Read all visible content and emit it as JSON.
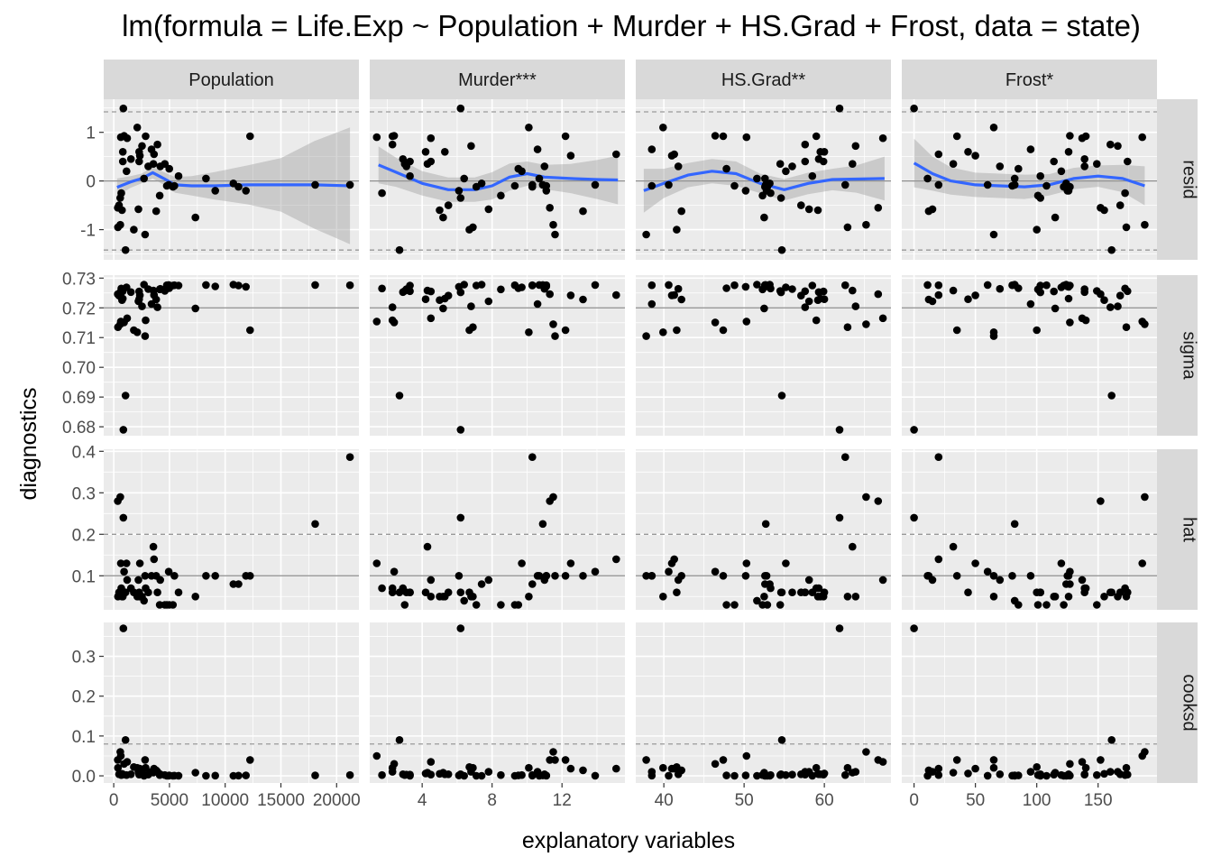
{
  "chart_data": {
    "type": "scatter",
    "title": "lm(formula = Life.Exp ~ Population + Murder + HS.Grad + Frost, data = state)",
    "xlabel": "explanatory variables",
    "ylabel": "diagnostics",
    "grid": true,
    "columns": [
      {
        "label": "Population",
        "xlim": [
          -900,
          22000
        ],
        "ticks": [
          0,
          5000,
          10000,
          15000,
          20000
        ],
        "tick_labels": [
          "0",
          "5000",
          "10000",
          "15000",
          "20000"
        ]
      },
      {
        "label": "Murder***",
        "xlim": [
          1.0,
          15.6
        ],
        "ticks": [
          4,
          8,
          12
        ],
        "tick_labels": [
          "4",
          "8",
          "12"
        ]
      },
      {
        "label": "HS.Grad**",
        "xlim": [
          36.5,
          68.3
        ],
        "ticks": [
          40,
          50,
          60
        ],
        "tick_labels": [
          "40",
          "50",
          "60"
        ]
      },
      {
        "label": "Frost*",
        "xlim": [
          -10,
          198
        ],
        "ticks": [
          0,
          50,
          100,
          150
        ],
        "tick_labels": [
          "0",
          "50",
          "100",
          "150"
        ]
      }
    ],
    "rows": [
      {
        "label": "resid",
        "ylim": [
          -1.62,
          1.68
        ],
        "ticks": [
          -1,
          0,
          1
        ],
        "tick_labels": [
          "-1",
          "0",
          "1"
        ],
        "hlines_solid": [
          0
        ],
        "hlines_dashed": [
          -1.42,
          1.42
        ]
      },
      {
        "label": "sigma",
        "ylim": [
          0.677,
          0.731
        ],
        "ticks": [
          0.68,
          0.69,
          0.7,
          0.71,
          0.72,
          0.73
        ],
        "tick_labels": [
          "0.68",
          "0.69",
          "0.70",
          "0.71",
          "0.72",
          "0.73"
        ],
        "hlines_solid": [
          0.72
        ],
        "hlines_dashed": []
      },
      {
        "label": "hat",
        "ylim": [
          0.018,
          0.405
        ],
        "ticks": [
          0.1,
          0.2,
          0.3,
          0.4
        ],
        "tick_labels": [
          "0.1",
          "0.2",
          "0.3",
          "0.4"
        ],
        "hlines_solid": [
          0.1
        ],
        "hlines_dashed": [
          0.2
        ]
      },
      {
        "label": "cooksd",
        "ylim": [
          -0.018,
          0.385
        ],
        "ticks": [
          0.0,
          0.1,
          0.2,
          0.3
        ],
        "tick_labels": [
          "0.0",
          "0.1",
          "0.2",
          "0.3"
        ],
        "hlines_solid": [],
        "hlines_dashed": [
          0.08
        ]
      }
    ],
    "smooth": {
      "color": "#3366FF",
      "band_color": "#999999",
      "curves": [
        {
          "column": "Population",
          "x": [
            300,
            1500,
            2500,
            3500,
            4500,
            5500,
            7000,
            9000,
            12000,
            15000,
            18000,
            21200
          ],
          "y": [
            -0.13,
            -0.02,
            0.05,
            0.17,
            0.05,
            -0.08,
            -0.1,
            -0.1,
            -0.08,
            -0.08,
            -0.08,
            -0.1
          ],
          "band": [
            0.18,
            0.12,
            0.1,
            0.12,
            0.13,
            0.16,
            0.2,
            0.28,
            0.4,
            0.55,
            0.9,
            1.2
          ]
        },
        {
          "column": "Murder***",
          "x": [
            1.5,
            2.5,
            4,
            5.5,
            7,
            8,
            9,
            10,
            11,
            12.5,
            14,
            15.2
          ],
          "y": [
            0.33,
            0.18,
            -0.05,
            -0.18,
            -0.18,
            -0.1,
            0.08,
            0.15,
            0.08,
            0.05,
            0.03,
            0.02
          ],
          "band": [
            0.38,
            0.3,
            0.25,
            0.25,
            0.25,
            0.28,
            0.28,
            0.25,
            0.25,
            0.3,
            0.4,
            0.5
          ]
        },
        {
          "column": "HS.Grad**",
          "x": [
            37.5,
            40,
            43,
            46,
            49,
            52,
            55,
            58,
            61,
            64,
            67.5
          ],
          "y": [
            -0.2,
            -0.05,
            0.12,
            0.2,
            0.15,
            -0.05,
            -0.18,
            -0.05,
            0.03,
            0.04,
            0.05
          ],
          "band": [
            0.45,
            0.3,
            0.25,
            0.25,
            0.25,
            0.2,
            0.22,
            0.22,
            0.22,
            0.28,
            0.45
          ]
        },
        {
          "column": "Frost*",
          "x": [
            0,
            15,
            30,
            50,
            70,
            90,
            110,
            130,
            150,
            170,
            188
          ],
          "y": [
            0.37,
            0.15,
            0.0,
            -0.08,
            -0.1,
            -0.12,
            -0.08,
            0.05,
            0.1,
            0.05,
            -0.1
          ],
          "band": [
            0.5,
            0.35,
            0.28,
            0.25,
            0.25,
            0.25,
            0.22,
            0.22,
            0.22,
            0.28,
            0.4
          ]
        }
      ]
    },
    "states": [
      {
        "pop": 3615,
        "murder": 15.1,
        "hsgrad": 41.3,
        "frost": 20,
        "resid": 0.55,
        "sigma": 0.7243,
        "hat": 0.14,
        "cooksd": 0.018
      },
      {
        "pop": 365,
        "murder": 11.3,
        "hsgrad": 66.7,
        "frost": 152,
        "resid": -0.55,
        "sigma": 0.7246,
        "hat": 0.28,
        "cooksd": 0.04
      },
      {
        "pop": 2212,
        "murder": 7.8,
        "hsgrad": 58.1,
        "frost": 15,
        "resid": -0.58,
        "sigma": 0.7222,
        "hat": 0.09,
        "cooksd": 0.01
      },
      {
        "pop": 2110,
        "murder": 10.1,
        "hsgrad": 39.9,
        "frost": 65,
        "resid": 1.1,
        "sigma": 0.7118,
        "hat": 0.05,
        "cooksd": 0.02
      },
      {
        "pop": 21198,
        "murder": 10.3,
        "hsgrad": 62.6,
        "frost": 20,
        "resid": -0.08,
        "sigma": 0.7276,
        "hat": 0.386,
        "cooksd": 0.002
      },
      {
        "pop": 2541,
        "murder": 6.8,
        "hsgrad": 63.9,
        "frost": 166,
        "resid": 0.72,
        "sigma": 0.7205,
        "hat": 0.05,
        "cooksd": 0.01
      },
      {
        "pop": 3100,
        "murder": 3.1,
        "hsgrad": 56.0,
        "frost": 139,
        "resid": 0.3,
        "sigma": 0.7263,
        "hat": 0.06,
        "cooksd": 0.003
      },
      {
        "pop": 579,
        "murder": 6.2,
        "hsgrad": 54.6,
        "frost": 103,
        "resid": -0.35,
        "sigma": 0.7252,
        "hat": 0.06,
        "cooksd": 0.004
      },
      {
        "pop": 8277,
        "murder": 10.7,
        "hsgrad": 52.6,
        "frost": 11,
        "resid": 0.05,
        "sigma": 0.7277,
        "hat": 0.1,
        "cooksd": 0.0002
      },
      {
        "pop": 4931,
        "murder": 13.9,
        "hsgrad": 40.6,
        "frost": 60,
        "resid": -0.08,
        "sigma": 0.7277,
        "hat": 0.11,
        "cooksd": 0.0004
      },
      {
        "pop": 868,
        "murder": 6.2,
        "hsgrad": 61.9,
        "frost": 0,
        "resid": 1.49,
        "sigma": 0.679,
        "hat": 0.24,
        "cooksd": 0.37
      },
      {
        "pop": 813,
        "murder": 5.3,
        "hsgrad": 59.5,
        "frost": 126,
        "resid": 0.6,
        "sigma": 0.7231,
        "hat": 0.05,
        "cooksd": 0.004
      },
      {
        "pop": 11197,
        "murder": 10.3,
        "hsgrad": 52.6,
        "frost": 127,
        "resid": -0.12,
        "sigma": 0.7275,
        "hat": 0.08,
        "cooksd": 0.0005
      },
      {
        "pop": 5313,
        "murder": 7.1,
        "hsgrad": 52.9,
        "frost": 122,
        "resid": -0.12,
        "sigma": 0.7275,
        "hat": 0.03,
        "cooksd": 0.0001
      },
      {
        "pop": 2861,
        "murder": 2.3,
        "hsgrad": 59.0,
        "frost": 140,
        "resid": 0.92,
        "sigma": 0.7158,
        "hat": 0.07,
        "cooksd": 0.02
      },
      {
        "pop": 2280,
        "murder": 4.5,
        "hsgrad": 59.9,
        "frost": 114,
        "resid": 0.4,
        "sigma": 0.7255,
        "hat": 0.05,
        "cooksd": 0.003
      },
      {
        "pop": 3387,
        "murder": 10.6,
        "hsgrad": 38.5,
        "frost": 95,
        "resid": 0.65,
        "sigma": 0.7213,
        "hat": 0.1,
        "cooksd": 0.01
      },
      {
        "pop": 3806,
        "murder": 13.2,
        "hsgrad": 42.2,
        "frost": 12,
        "resid": -0.62,
        "sigma": 0.7228,
        "hat": 0.1,
        "cooksd": 0.014
      },
      {
        "pop": 1058,
        "murder": 2.7,
        "hsgrad": 54.7,
        "frost": 161,
        "resid": -1.42,
        "sigma": 0.6905,
        "hat": 0.06,
        "cooksd": 0.09
      },
      {
        "pop": 4122,
        "murder": 8.5,
        "hsgrad": 52.3,
        "frost": 101,
        "resid": -0.3,
        "sigma": 0.7262,
        "hat": 0.03,
        "cooksd": 0.002
      },
      {
        "pop": 5814,
        "murder": 3.3,
        "hsgrad": 58.5,
        "frost": 103,
        "resid": 0.1,
        "sigma": 0.7275,
        "hat": 0.06,
        "cooksd": 0.0004
      },
      {
        "pop": 9111,
        "murder": 11.1,
        "hsgrad": 52.8,
        "frost": 125,
        "resid": -0.2,
        "sigma": 0.7272,
        "hat": 0.1,
        "cooksd": 0.0006
      },
      {
        "pop": 3921,
        "murder": 2.3,
        "hsgrad": 57.6,
        "frost": 160,
        "resid": 0.75,
        "sigma": 0.7202,
        "hat": 0.06,
        "cooksd": 0.01
      },
      {
        "pop": 2341,
        "murder": 12.5,
        "hsgrad": 41.0,
        "frost": 50,
        "resid": 0.52,
        "sigma": 0.7242,
        "hat": 0.13,
        "cooksd": 0.018
      },
      {
        "pop": 4767,
        "murder": 9.3,
        "hsgrad": 48.8,
        "frost": 108,
        "resid": -0.1,
        "sigma": 0.7276,
        "hat": 0.03,
        "cooksd": 0.0002
      },
      {
        "pop": 746,
        "murder": 5.0,
        "hsgrad": 59.2,
        "frost": 155,
        "resid": -0.6,
        "sigma": 0.7226,
        "hat": 0.05,
        "cooksd": 0.005
      },
      {
        "pop": 1544,
        "murder": 2.9,
        "hsgrad": 59.3,
        "frost": 139,
        "resid": 0.45,
        "sigma": 0.7253,
        "hat": 0.07,
        "cooksd": 0.004
      },
      {
        "pop": 590,
        "murder": 11.5,
        "hsgrad": 65.2,
        "frost": 188,
        "resid": -0.9,
        "sigma": 0.7145,
        "hat": 0.29,
        "cooksd": 0.06
      },
      {
        "pop": 812,
        "murder": 3.3,
        "hsgrad": 57.6,
        "frost": 174,
        "resid": 0.4,
        "sigma": 0.7256,
        "hat": 0.06,
        "cooksd": 0.003
      },
      {
        "pop": 7333,
        "murder": 5.2,
        "hsgrad": 52.5,
        "frost": 115,
        "resid": -0.75,
        "sigma": 0.7198,
        "hat": 0.05,
        "cooksd": 0.008
      },
      {
        "pop": 1144,
        "murder": 9.7,
        "hsgrad": 55.2,
        "frost": 120,
        "resid": 0.2,
        "sigma": 0.7269,
        "hat": 0.13,
        "cooksd": 0.002
      },
      {
        "pop": 18076,
        "murder": 10.9,
        "hsgrad": 52.7,
        "frost": 82,
        "resid": -0.08,
        "sigma": 0.7277,
        "hat": 0.225,
        "cooksd": 0.001
      },
      {
        "pop": 5441,
        "murder": 11.1,
        "hsgrad": 38.5,
        "frost": 80,
        "resid": -0.1,
        "sigma": 0.7276,
        "hat": 0.1,
        "cooksd": 0.0005
      },
      {
        "pop": 637,
        "murder": 1.4,
        "hsgrad": 50.3,
        "frost": 186,
        "resid": 0.9,
        "sigma": 0.7154,
        "hat": 0.13,
        "cooksd": 0.05
      },
      {
        "pop": 10735,
        "murder": 7.4,
        "hsgrad": 53.2,
        "frost": 124,
        "resid": -0.05,
        "sigma": 0.7278,
        "hat": 0.08,
        "cooksd": 0.0001
      },
      {
        "pop": 2715,
        "murder": 6.4,
        "hsgrad": 51.6,
        "frost": 82,
        "resid": 0.05,
        "sigma": 0.7278,
        "hat": 0.04,
        "cooksd": 0.0001
      },
      {
        "pop": 2284,
        "murder": 4.2,
        "hsgrad": 60.0,
        "frost": 44,
        "resid": 0.6,
        "sigma": 0.7229,
        "hat": 0.06,
        "cooksd": 0.006
      },
      {
        "pop": 11860,
        "murder": 6.1,
        "hsgrad": 50.2,
        "frost": 126,
        "resid": -0.2,
        "sigma": 0.7271,
        "hat": 0.1,
        "cooksd": 0.001
      },
      {
        "pop": 931,
        "murder": 2.4,
        "hsgrad": 46.4,
        "frost": 127,
        "resid": 0.93,
        "sigma": 0.7151,
        "hat": 0.11,
        "cooksd": 0.03
      },
      {
        "pop": 2816,
        "murder": 11.6,
        "hsgrad": 37.8,
        "frost": 65,
        "resid": -1.1,
        "sigma": 0.7105,
        "hat": 0.1,
        "cooksd": 0.04
      },
      {
        "pop": 681,
        "murder": 1.7,
        "hsgrad": 53.3,
        "frost": 172,
        "resid": -0.25,
        "sigma": 0.7265,
        "hat": 0.07,
        "cooksd": 0.002
      },
      {
        "pop": 4173,
        "murder": 11.0,
        "hsgrad": 41.8,
        "frost": 70,
        "resid": 0.3,
        "sigma": 0.7264,
        "hat": 0.09,
        "cooksd": 0.004
      },
      {
        "pop": 12237,
        "murder": 12.2,
        "hsgrad": 47.4,
        "frost": 35,
        "resid": 0.92,
        "sigma": 0.7125,
        "hat": 0.1,
        "cooksd": 0.04
      },
      {
        "pop": 1203,
        "murder": 4.5,
        "hsgrad": 67.3,
        "frost": 137,
        "resid": 0.88,
        "sigma": 0.7165,
        "hat": 0.09,
        "cooksd": 0.035
      },
      {
        "pop": 472,
        "murder": 5.5,
        "hsgrad": 57.1,
        "frost": 168,
        "resid": -0.5,
        "sigma": 0.7241,
        "hat": 0.06,
        "cooksd": 0.004
      },
      {
        "pop": 4981,
        "murder": 9.5,
        "hsgrad": 47.8,
        "frost": 85,
        "resid": 0.25,
        "sigma": 0.7266,
        "hat": 0.03,
        "cooksd": 0.001
      },
      {
        "pop": 3559,
        "murder": 4.3,
        "hsgrad": 63.5,
        "frost": 32,
        "resid": 0.35,
        "sigma": 0.7258,
        "hat": 0.17,
        "cooksd": 0.008
      },
      {
        "pop": 1799,
        "murder": 6.7,
        "hsgrad": 41.6,
        "frost": 100,
        "resid": -1.0,
        "sigma": 0.7125,
        "hat": 0.06,
        "cooksd": 0.022
      },
      {
        "pop": 4589,
        "murder": 3.0,
        "hsgrad": 54.5,
        "frost": 149,
        "resid": 0.35,
        "sigma": 0.7257,
        "hat": 0.03,
        "cooksd": 0.002
      },
      {
        "pop": 376,
        "murder": 6.9,
        "hsgrad": 62.9,
        "frost": 173,
        "resid": -0.95,
        "sigma": 0.7135,
        "hat": 0.05,
        "cooksd": 0.02
      }
    ]
  }
}
